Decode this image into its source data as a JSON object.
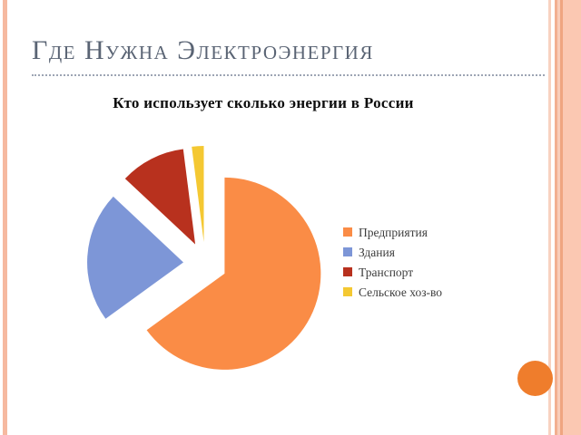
{
  "slide": {
    "title": "Где Нужна Электроэнергия"
  },
  "chart_data": {
    "type": "pie",
    "title": "Кто использует сколько энергии в России",
    "labels": [
      "Предприятия",
      "Здания",
      "Транспорт",
      "Сельское хоз-во"
    ],
    "values": [
      65,
      22,
      11,
      2
    ],
    "colors": [
      "#FA8C46",
      "#7D96D7",
      "#B8311E",
      "#F4C832"
    ],
    "legend_position": "right",
    "exploded": true,
    "start_angle_deg": 0
  },
  "decor": {
    "title_color": "#5A6474",
    "dotted_rule_color": "#9DA5B4",
    "left_stripe_color": "#F6B9A0",
    "right_band_colors": [
      "#F8D2C0",
      "#F2AF90",
      "#F9CDB9",
      "#EFA580",
      "#FBC8B2"
    ],
    "circle_color": "#EF7D2C"
  }
}
